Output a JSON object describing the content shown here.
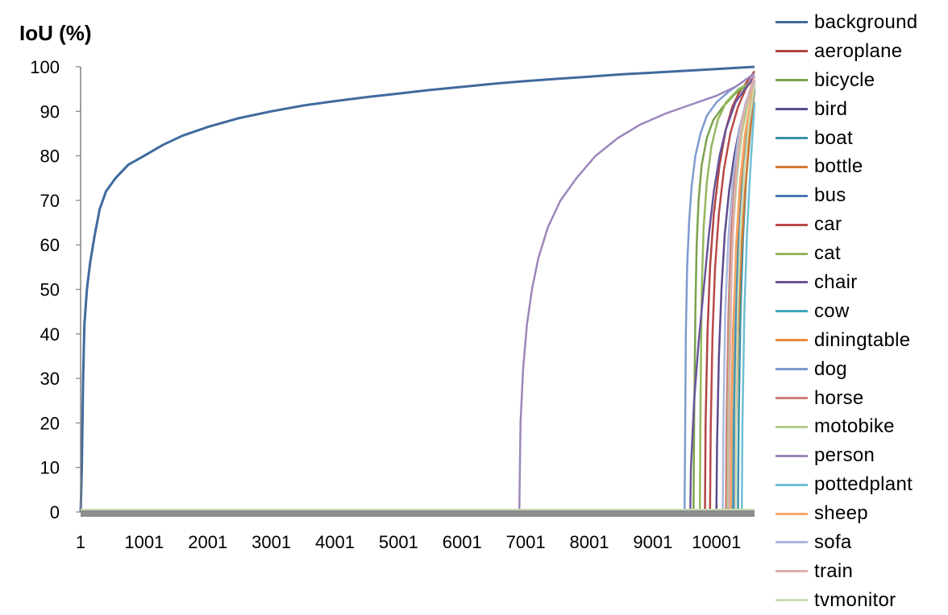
{
  "chart_data": {
    "type": "line",
    "ylabel": "IoU (%)",
    "xlabel": "",
    "ylim": [
      0,
      100
    ],
    "xlim": [
      1,
      10600
    ],
    "yticks": [
      "0",
      "10",
      "20",
      "30",
      "40",
      "50",
      "60",
      "70",
      "80",
      "90",
      "100"
    ],
    "xticks": [
      "1",
      "1001",
      "2001",
      "3001",
      "4001",
      "5001",
      "6001",
      "7001",
      "8001",
      "9001",
      "10001"
    ],
    "grid": false,
    "legend_position": "right",
    "series": [
      {
        "name": "background",
        "color": "#3f6a9e",
        "points": [
          [
            1,
            0
          ],
          [
            20,
            10
          ],
          [
            40,
            30
          ],
          [
            60,
            42
          ],
          [
            100,
            50
          ],
          [
            150,
            56
          ],
          [
            220,
            62
          ],
          [
            300,
            68
          ],
          [
            400,
            72
          ],
          [
            550,
            75
          ],
          [
            750,
            78
          ],
          [
            1000,
            80
          ],
          [
            1300,
            82.5
          ],
          [
            1600,
            84.5
          ],
          [
            2001,
            86.5
          ],
          [
            2500,
            88.5
          ],
          [
            3001,
            90
          ],
          [
            3500,
            91.3
          ],
          [
            4001,
            92.3
          ],
          [
            4500,
            93.2
          ],
          [
            5001,
            94
          ],
          [
            5500,
            94.8
          ],
          [
            6001,
            95.5
          ],
          [
            6500,
            96.2
          ],
          [
            7001,
            96.8
          ],
          [
            7500,
            97.3
          ],
          [
            8001,
            97.8
          ],
          [
            8500,
            98.3
          ],
          [
            9001,
            98.7
          ],
          [
            9500,
            99.1
          ],
          [
            10001,
            99.5
          ],
          [
            10600,
            100
          ]
        ]
      },
      {
        "name": "aeroplane",
        "color": "#b04543",
        "points": [
          [
            9820,
            0
          ],
          [
            9830,
            20
          ],
          [
            9860,
            40
          ],
          [
            9900,
            55
          ],
          [
            9960,
            67
          ],
          [
            10050,
            78
          ],
          [
            10150,
            86
          ],
          [
            10250,
            91
          ],
          [
            10350,
            94
          ],
          [
            10450,
            96
          ],
          [
            10600,
            99
          ]
        ]
      },
      {
        "name": "bicycle",
        "color": "#7aa24c",
        "points": [
          [
            9640,
            0
          ],
          [
            9650,
            20
          ],
          [
            9670,
            45
          ],
          [
            9690,
            60
          ],
          [
            9720,
            70
          ],
          [
            9770,
            78
          ],
          [
            9850,
            84
          ],
          [
            9950,
            88
          ],
          [
            10100,
            91
          ],
          [
            10300,
            94
          ],
          [
            10600,
            97
          ]
        ]
      },
      {
        "name": "bird",
        "color": "#5e4b8e",
        "points": [
          [
            10000,
            0
          ],
          [
            10010,
            15
          ],
          [
            10040,
            35
          ],
          [
            10080,
            50
          ],
          [
            10130,
            62
          ],
          [
            10200,
            72
          ],
          [
            10280,
            80
          ],
          [
            10360,
            86
          ],
          [
            10450,
            91
          ],
          [
            10600,
            98
          ]
        ]
      },
      {
        "name": "boat",
        "color": "#3b92a8",
        "points": [
          [
            10340,
            0
          ],
          [
            10350,
            20
          ],
          [
            10380,
            45
          ],
          [
            10420,
            62
          ],
          [
            10470,
            75
          ],
          [
            10530,
            85
          ],
          [
            10600,
            95
          ]
        ]
      },
      {
        "name": "bottle",
        "color": "#d37a32",
        "points": [
          [
            10290,
            0
          ],
          [
            10300,
            15
          ],
          [
            10340,
            40
          ],
          [
            10390,
            58
          ],
          [
            10450,
            72
          ],
          [
            10520,
            84
          ],
          [
            10600,
            96
          ]
        ]
      },
      {
        "name": "bus",
        "color": "#4a78b4",
        "points": [
          [
            10280,
            0
          ],
          [
            10290,
            25
          ],
          [
            10320,
            50
          ],
          [
            10360,
            64
          ],
          [
            10420,
            76
          ],
          [
            10500,
            86
          ],
          [
            10600,
            96
          ]
        ]
      },
      {
        "name": "car",
        "color": "#b84a48",
        "points": [
          [
            9900,
            0
          ],
          [
            9910,
            18
          ],
          [
            9940,
            40
          ],
          [
            9980,
            55
          ],
          [
            10040,
            67
          ],
          [
            10120,
            77
          ],
          [
            10220,
            85
          ],
          [
            10340,
            91
          ],
          [
            10460,
            95
          ],
          [
            10600,
            98
          ]
        ]
      },
      {
        "name": "cat",
        "color": "#94b85c",
        "points": [
          [
            9740,
            0
          ],
          [
            9750,
            25
          ],
          [
            9770,
            50
          ],
          [
            9800,
            64
          ],
          [
            9850,
            74
          ],
          [
            9920,
            82
          ],
          [
            10020,
            88
          ],
          [
            10150,
            92
          ],
          [
            10350,
            95
          ],
          [
            10600,
            97
          ]
        ]
      },
      {
        "name": "chair",
        "color": "#6a559a",
        "points": [
          [
            9590,
            0
          ],
          [
            9600,
            10
          ],
          [
            9650,
            25
          ],
          [
            9720,
            38
          ],
          [
            9800,
            50
          ],
          [
            9880,
            62
          ],
          [
            9960,
            72
          ],
          [
            10050,
            80
          ],
          [
            10150,
            86
          ],
          [
            10300,
            92
          ],
          [
            10450,
            95
          ],
          [
            10600,
            98
          ]
        ]
      },
      {
        "name": "cow",
        "color": "#41a7bd",
        "points": [
          [
            10250,
            0
          ],
          [
            10260,
            20
          ],
          [
            10290,
            45
          ],
          [
            10330,
            62
          ],
          [
            10390,
            75
          ],
          [
            10470,
            86
          ],
          [
            10600,
            97
          ]
        ]
      },
      {
        "name": "diningtable",
        "color": "#ea8c3a",
        "points": [
          [
            10220,
            0
          ],
          [
            10230,
            15
          ],
          [
            10260,
            40
          ],
          [
            10310,
            58
          ],
          [
            10370,
            72
          ],
          [
            10450,
            84
          ],
          [
            10600,
            97
          ]
        ]
      },
      {
        "name": "dog",
        "color": "#7d9bcf",
        "points": [
          [
            9500,
            0
          ],
          [
            9510,
            20
          ],
          [
            9520,
            40
          ],
          [
            9540,
            55
          ],
          [
            9570,
            65
          ],
          [
            9610,
            73
          ],
          [
            9670,
            80
          ],
          [
            9750,
            85
          ],
          [
            9850,
            89
          ],
          [
            10000,
            92
          ],
          [
            10200,
            94.5
          ],
          [
            10400,
            96.5
          ],
          [
            10600,
            98.5
          ]
        ]
      },
      {
        "name": "horse",
        "color": "#cd7f7d",
        "points": [
          [
            10150,
            0
          ],
          [
            10160,
            20
          ],
          [
            10190,
            45
          ],
          [
            10230,
            62
          ],
          [
            10290,
            75
          ],
          [
            10370,
            85
          ],
          [
            10470,
            92
          ],
          [
            10600,
            98
          ]
        ]
      },
      {
        "name": "motobike",
        "color": "#b4cc8c",
        "points": [
          [
            10180,
            0
          ],
          [
            10190,
            25
          ],
          [
            10220,
            48
          ],
          [
            10260,
            63
          ],
          [
            10320,
            75
          ],
          [
            10400,
            85
          ],
          [
            10500,
            92
          ],
          [
            10600,
            97
          ]
        ]
      },
      {
        "name": "person",
        "color": "#9c87bb",
        "points": [
          [
            6900,
            0
          ],
          [
            6920,
            20
          ],
          [
            6960,
            32
          ],
          [
            7020,
            42
          ],
          [
            7100,
            50
          ],
          [
            7200,
            57
          ],
          [
            7350,
            64
          ],
          [
            7550,
            70
          ],
          [
            7800,
            75
          ],
          [
            8100,
            80
          ],
          [
            8450,
            84
          ],
          [
            8800,
            87
          ],
          [
            9200,
            89.5
          ],
          [
            9600,
            91.5
          ],
          [
            10000,
            93.5
          ],
          [
            10300,
            95.5
          ],
          [
            10600,
            98.5
          ]
        ]
      },
      {
        "name": "pottedplant",
        "color": "#6fbfd3",
        "points": [
          [
            10400,
            0
          ],
          [
            10410,
            20
          ],
          [
            10440,
            45
          ],
          [
            10480,
            62
          ],
          [
            10530,
            76
          ],
          [
            10600,
            92
          ]
        ]
      },
      {
        "name": "sheep",
        "color": "#f6a565",
        "points": [
          [
            10230,
            0
          ],
          [
            10240,
            20
          ],
          [
            10270,
            42
          ],
          [
            10310,
            60
          ],
          [
            10370,
            74
          ],
          [
            10450,
            85
          ],
          [
            10600,
            97
          ]
        ]
      },
      {
        "name": "sofa",
        "color": "#a9b9dc",
        "points": [
          [
            10100,
            0
          ],
          [
            10110,
            20
          ],
          [
            10140,
            45
          ],
          [
            10190,
            62
          ],
          [
            10260,
            75
          ],
          [
            10350,
            85
          ],
          [
            10460,
            92
          ],
          [
            10600,
            97
          ]
        ]
      },
      {
        "name": "train",
        "color": "#deafad",
        "points": [
          [
            10200,
            0
          ],
          [
            10210,
            30
          ],
          [
            10240,
            55
          ],
          [
            10280,
            70
          ],
          [
            10340,
            81
          ],
          [
            10420,
            89
          ],
          [
            10600,
            98
          ]
        ]
      },
      {
        "name": "tvmonitor",
        "color": "#c8dbb2",
        "points": [
          [
            10300,
            0
          ],
          [
            10310,
            25
          ],
          [
            10340,
            48
          ],
          [
            10380,
            64
          ],
          [
            10440,
            77
          ],
          [
            10510,
            87
          ],
          [
            10600,
            96
          ]
        ]
      }
    ]
  }
}
